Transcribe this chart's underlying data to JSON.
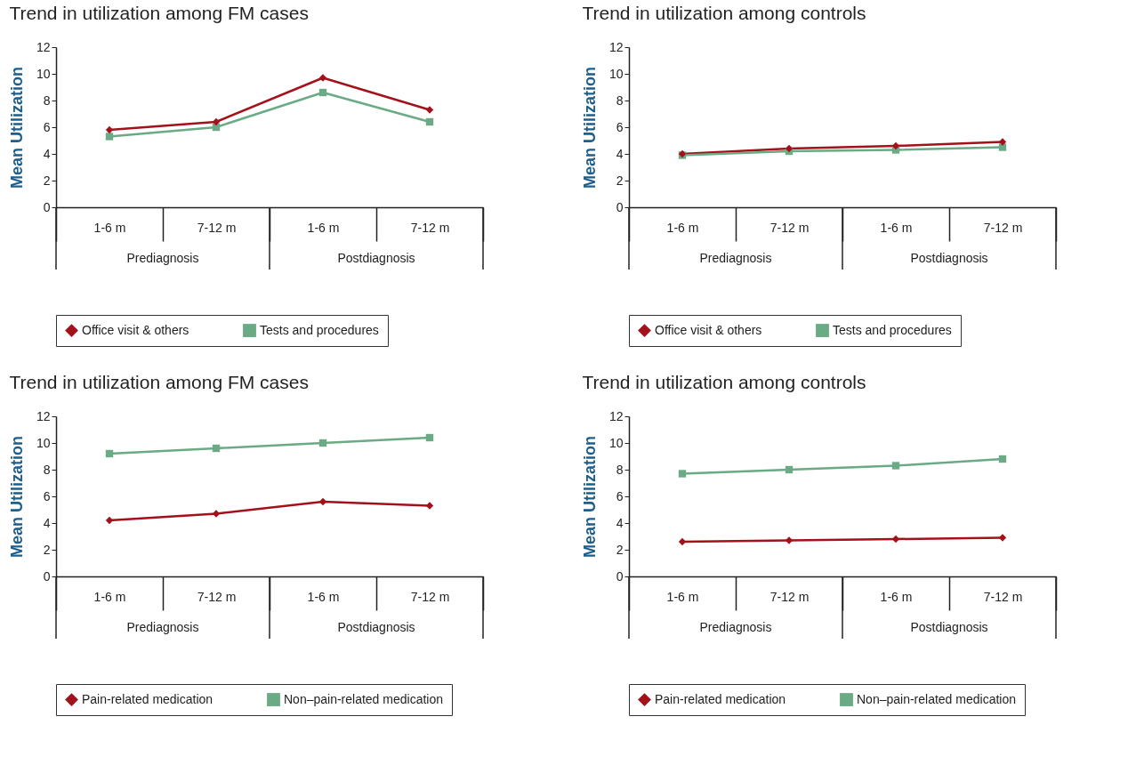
{
  "chart_data": [
    {
      "type": "line",
      "title": "Trend in utilization among FM cases",
      "ylabel": "Mean Utilization",
      "categories": [
        "1-6 m",
        "7-12 m",
        "1-6 m",
        "7-12 m"
      ],
      "annotations": [
        "Prediagnosis",
        "Postdiagnosis"
      ],
      "ylim": [
        0,
        12
      ],
      "yticks": [
        0,
        2,
        4,
        6,
        8,
        10,
        12
      ],
      "grid": false,
      "legend": "bottom",
      "series": [
        {
          "name": "Office visit & others",
          "color": "#a3111b",
          "marker": "diamond",
          "values": [
            5.8,
            6.4,
            9.7,
            7.3
          ]
        },
        {
          "name": "Tests and procedures",
          "color": "#6aaa84",
          "marker": "square",
          "values": [
            5.3,
            6.0,
            8.6,
            6.4
          ]
        }
      ]
    },
    {
      "type": "line",
      "title": "Trend in utilization among controls",
      "ylabel": "Mean Utilization",
      "categories": [
        "1-6 m",
        "7-12 m",
        "1-6 m",
        "7-12 m"
      ],
      "annotations": [
        "Prediagnosis",
        "Postdiagnosis"
      ],
      "ylim": [
        0,
        12
      ],
      "yticks": [
        0,
        2,
        4,
        6,
        8,
        10,
        12
      ],
      "grid": false,
      "legend": "bottom",
      "series": [
        {
          "name": "Office visit & others",
          "color": "#a3111b",
          "marker": "diamond",
          "values": [
            4.0,
            4.4,
            4.6,
            4.9
          ]
        },
        {
          "name": "Tests and procedures",
          "color": "#6aaa84",
          "marker": "square",
          "values": [
            3.9,
            4.2,
            4.3,
            4.5
          ]
        }
      ]
    },
    {
      "type": "line",
      "title": "Trend in utilization among FM cases",
      "ylabel": "Mean Utilization",
      "categories": [
        "1-6 m",
        "7-12 m",
        "1-6 m",
        "7-12 m"
      ],
      "annotations": [
        "Prediagnosis",
        "Postdiagnosis"
      ],
      "ylim": [
        0,
        12
      ],
      "yticks": [
        0,
        2,
        4,
        6,
        8,
        10,
        12
      ],
      "grid": false,
      "legend": "bottom",
      "series": [
        {
          "name": "Pain-related medication",
          "color": "#a3111b",
          "marker": "diamond",
          "values": [
            4.2,
            4.7,
            5.6,
            5.3
          ]
        },
        {
          "name": "Non–pain-related medication",
          "color": "#6aaa84",
          "marker": "square",
          "values": [
            9.2,
            9.6,
            10.0,
            10.4
          ]
        }
      ]
    },
    {
      "type": "line",
      "title": "Trend in utilization among controls",
      "ylabel": "Mean Utilization",
      "categories": [
        "1-6 m",
        "7-12 m",
        "1-6 m",
        "7-12 m"
      ],
      "annotations": [
        "Prediagnosis",
        "Postdiagnosis"
      ],
      "ylim": [
        0,
        12
      ],
      "yticks": [
        0,
        2,
        4,
        6,
        8,
        10,
        12
      ],
      "grid": false,
      "legend": "bottom",
      "series": [
        {
          "name": "Pain-related medication",
          "color": "#a3111b",
          "marker": "diamond",
          "values": [
            2.6,
            2.7,
            2.8,
            2.9
          ]
        },
        {
          "name": "Non–pain-related medication",
          "color": "#6aaa84",
          "marker": "square",
          "values": [
            7.7,
            8.0,
            8.3,
            8.8
          ]
        }
      ]
    }
  ]
}
